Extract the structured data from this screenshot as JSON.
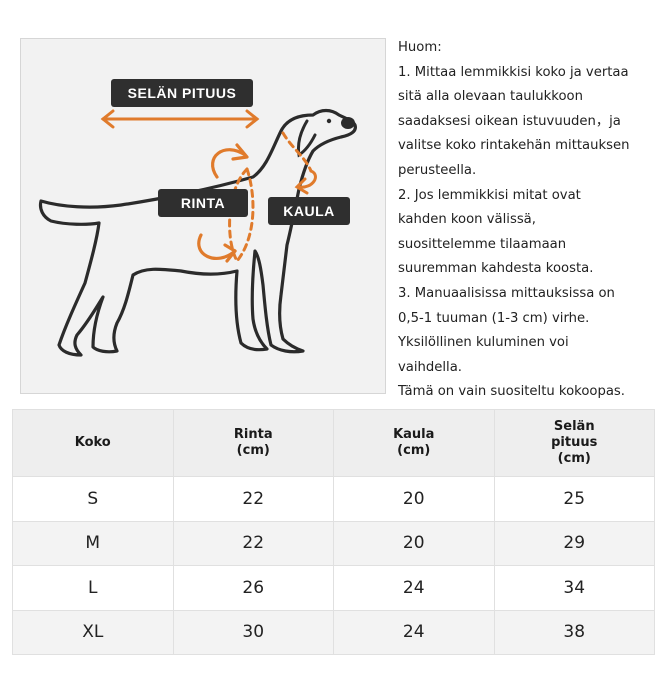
{
  "diagram": {
    "labels": {
      "back": "SELÄN PITUUS",
      "chest": "RINTA",
      "neck": "KAULA"
    },
    "accent_color": "#e07b2c",
    "label_bg": "#2f2f2f"
  },
  "notes": {
    "heading": "Huom:",
    "lines": [
      "1. Mittaa lemmikkisi koko ja vertaa",
      "sitä alla olevaan taulukkoon",
      "saadaksesi oikean istuvuuden，ja",
      "valitse koko rintakehän mittauksen",
      "perusteella.",
      "2. Jos lemmikkisi mitat ovat",
      "kahden koon välissä,",
      "suosittelemme tilaamaan",
      "suuremman kahdesta koosta.",
      "3. Manuaalisissa mittauksissa on",
      "0,5-1 tuuman (1-3 cm) virhe.",
      "Yksilöllinen kuluminen voi",
      "vaihdella.",
      "Tämä on vain suositeltu kokoopas."
    ]
  },
  "table": {
    "headers": [
      [
        "Koko"
      ],
      [
        "Rinta",
        "(cm)"
      ],
      [
        "Kaula",
        "(cm)"
      ],
      [
        "Selän",
        "pituus",
        "(cm)"
      ]
    ],
    "rows": [
      [
        "S",
        "22",
        "20",
        "25"
      ],
      [
        "M",
        "22",
        "20",
        "29"
      ],
      [
        "L",
        "26",
        "24",
        "34"
      ],
      [
        "XL",
        "30",
        "24",
        "38"
      ]
    ]
  }
}
